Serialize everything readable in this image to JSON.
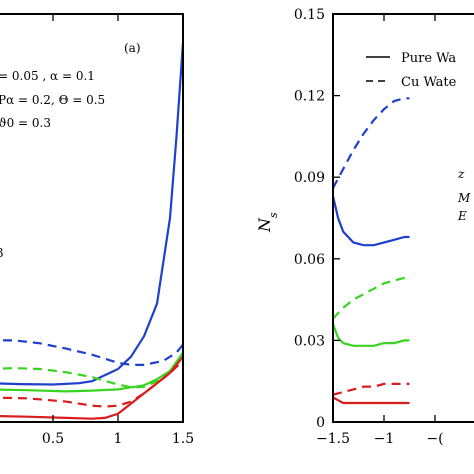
{
  "chart_data": [
    {
      "type": "line",
      "panel_label": "(a)",
      "xlim": [
        0,
        1.5
      ],
      "ylim": [
        0,
        1
      ],
      "x_ticks": [
        {
          "value": 0.5,
          "label": "0.5"
        },
        {
          "value": 1.0,
          "label": "1"
        },
        {
          "value": 1.5,
          "label": "1.5"
        }
      ],
      "annotations": [
        "= 0.05 , α = 0.1",
        "Pα = 0.2, Θ = 0.5",
        "ϑ0 = 0.3",
        "3"
      ],
      "series": [
        {
          "color": "#1f3fcf",
          "dash": "solid",
          "points": [
            [
              0,
              0.095
            ],
            [
              0.25,
              0.093
            ],
            [
              0.5,
              0.092
            ],
            [
              0.7,
              0.095
            ],
            [
              0.8,
              0.1
            ],
            [
              0.9,
              0.115
            ],
            [
              1.0,
              0.13
            ],
            [
              1.1,
              0.16
            ],
            [
              1.2,
              0.21
            ],
            [
              1.3,
              0.29
            ],
            [
              1.4,
              0.5
            ],
            [
              1.45,
              0.7
            ],
            [
              1.5,
              0.93
            ]
          ]
        },
        {
          "color": "#1f3fcf",
          "dash": "dashed",
          "points": [
            [
              0,
              0.2
            ],
            [
              0.2,
              0.2
            ],
            [
              0.4,
              0.193
            ],
            [
              0.6,
              0.18
            ],
            [
              0.8,
              0.165
            ],
            [
              1.0,
              0.145
            ],
            [
              1.1,
              0.14
            ],
            [
              1.2,
              0.14
            ],
            [
              1.35,
              0.15
            ],
            [
              1.45,
              0.17
            ],
            [
              1.5,
              0.19
            ]
          ]
        },
        {
          "color": "#39d41f",
          "dash": "solid",
          "points": [
            [
              0,
              0.08
            ],
            [
              0.3,
              0.078
            ],
            [
              0.6,
              0.075
            ],
            [
              0.8,
              0.077
            ],
            [
              1.0,
              0.08
            ],
            [
              1.1,
              0.085
            ],
            [
              1.2,
              0.09
            ],
            [
              1.3,
              0.105
            ],
            [
              1.4,
              0.125
            ],
            [
              1.5,
              0.17
            ]
          ]
        },
        {
          "color": "#39d41f",
          "dash": "dashed",
          "points": [
            [
              0,
              0.13
            ],
            [
              0.2,
              0.132
            ],
            [
              0.4,
              0.13
            ],
            [
              0.6,
              0.122
            ],
            [
              0.8,
              0.11
            ],
            [
              1.0,
              0.092
            ],
            [
              1.1,
              0.085
            ],
            [
              1.2,
              0.086
            ],
            [
              1.3,
              0.1
            ],
            [
              1.4,
              0.125
            ],
            [
              1.5,
              0.16
            ]
          ]
        },
        {
          "color": "#d91c1c",
          "dash": "solid",
          "points": [
            [
              0,
              0.015
            ],
            [
              0.3,
              0.013
            ],
            [
              0.6,
              0.01
            ],
            [
              0.8,
              0.008
            ],
            [
              0.9,
              0.01
            ],
            [
              1.0,
              0.02
            ],
            [
              1.1,
              0.045
            ],
            [
              1.2,
              0.07
            ],
            [
              1.3,
              0.095
            ],
            [
              1.4,
              0.12
            ],
            [
              1.5,
              0.16
            ]
          ]
        },
        {
          "color": "#d91c1c",
          "dash": "dashed",
          "points": [
            [
              0,
              0.06
            ],
            [
              0.3,
              0.058
            ],
            [
              0.6,
              0.05
            ],
            [
              0.8,
              0.04
            ],
            [
              0.9,
              0.038
            ],
            [
              1.0,
              0.04
            ],
            [
              1.1,
              0.05
            ],
            [
              1.2,
              0.07
            ],
            [
              1.3,
              0.095
            ],
            [
              1.4,
              0.12
            ],
            [
              1.5,
              0.15
            ]
          ]
        }
      ]
    },
    {
      "type": "line",
      "xlim": [
        -1.5,
        0
      ],
      "ylim": [
        0,
        0.15
      ],
      "ylabel": "Ns",
      "x_ticks": [
        {
          "value": -1.5,
          "label": "−1.5"
        },
        {
          "value": -1.0,
          "label": "−1"
        },
        {
          "value": -0.5,
          "label": "−("
        }
      ],
      "y_ticks": [
        {
          "value": 0,
          "label": "0"
        },
        {
          "value": 0.03,
          "label": "0.03"
        },
        {
          "value": 0.06,
          "label": "0.06"
        },
        {
          "value": 0.09,
          "label": "0.09"
        },
        {
          "value": 0.12,
          "label": "0.12"
        },
        {
          "value": 0.15,
          "label": "0.15"
        }
      ],
      "legend": {
        "placement": "top-right",
        "entries": [
          {
            "label": "Pure Wa",
            "dash": "solid"
          },
          {
            "label": "Cu Wate",
            "dash": "dashed"
          }
        ]
      },
      "annotations": [
        "z",
        "M",
        "E"
      ],
      "series": [
        {
          "color": "#1f3fcf",
          "dash": "dashed",
          "points": [
            [
              -1.5,
              0.086
            ],
            [
              -1.4,
              0.093
            ],
            [
              -1.3,
              0.1
            ],
            [
              -1.2,
              0.106
            ],
            [
              -1.1,
              0.111
            ],
            [
              -1.0,
              0.115
            ],
            [
              -0.9,
              0.118
            ],
            [
              -0.8,
              0.119
            ],
            [
              -0.75,
              0.119
            ]
          ]
        },
        {
          "color": "#1f3fcf",
          "dash": "solid",
          "points": [
            [
              -1.5,
              0.083
            ],
            [
              -1.45,
              0.075
            ],
            [
              -1.4,
              0.07
            ],
            [
              -1.3,
              0.066
            ],
            [
              -1.2,
              0.065
            ],
            [
              -1.1,
              0.065
            ],
            [
              -1.0,
              0.066
            ],
            [
              -0.9,
              0.067
            ],
            [
              -0.8,
              0.068
            ],
            [
              -0.75,
              0.068
            ]
          ]
        },
        {
          "color": "#39d41f",
          "dash": "dashed",
          "points": [
            [
              -1.5,
              0.038
            ],
            [
              -1.4,
              0.042
            ],
            [
              -1.3,
              0.045
            ],
            [
              -1.2,
              0.047
            ],
            [
              -1.1,
              0.049
            ],
            [
              -1.0,
              0.051
            ],
            [
              -0.9,
              0.052
            ],
            [
              -0.8,
              0.053
            ],
            [
              -0.75,
              0.053
            ]
          ]
        },
        {
          "color": "#39d41f",
          "dash": "solid",
          "points": [
            [
              -1.5,
              0.036
            ],
            [
              -1.45,
              0.031
            ],
            [
              -1.4,
              0.029
            ],
            [
              -1.3,
              0.028
            ],
            [
              -1.2,
              0.028
            ],
            [
              -1.1,
              0.028
            ],
            [
              -1.0,
              0.029
            ],
            [
              -0.9,
              0.029
            ],
            [
              -0.8,
              0.03
            ],
            [
              -0.75,
              0.03
            ]
          ]
        },
        {
          "color": "#d91c1c",
          "dash": "dashed",
          "points": [
            [
              -1.5,
              0.01
            ],
            [
              -1.4,
              0.011
            ],
            [
              -1.3,
              0.012
            ],
            [
              -1.2,
              0.013
            ],
            [
              -1.1,
              0.013
            ],
            [
              -1.0,
              0.014
            ],
            [
              -0.9,
              0.014
            ],
            [
              -0.8,
              0.014
            ],
            [
              -0.75,
              0.014
            ]
          ]
        },
        {
          "color": "#d91c1c",
          "dash": "solid",
          "points": [
            [
              -1.5,
              0.009
            ],
            [
              -1.45,
              0.008
            ],
            [
              -1.4,
              0.007
            ],
            [
              -1.3,
              0.007
            ],
            [
              -1.2,
              0.007
            ],
            [
              -1.1,
              0.007
            ],
            [
              -1.0,
              0.007
            ],
            [
              -0.9,
              0.007
            ],
            [
              -0.8,
              0.007
            ],
            [
              -0.75,
              0.007
            ]
          ]
        }
      ]
    }
  ]
}
